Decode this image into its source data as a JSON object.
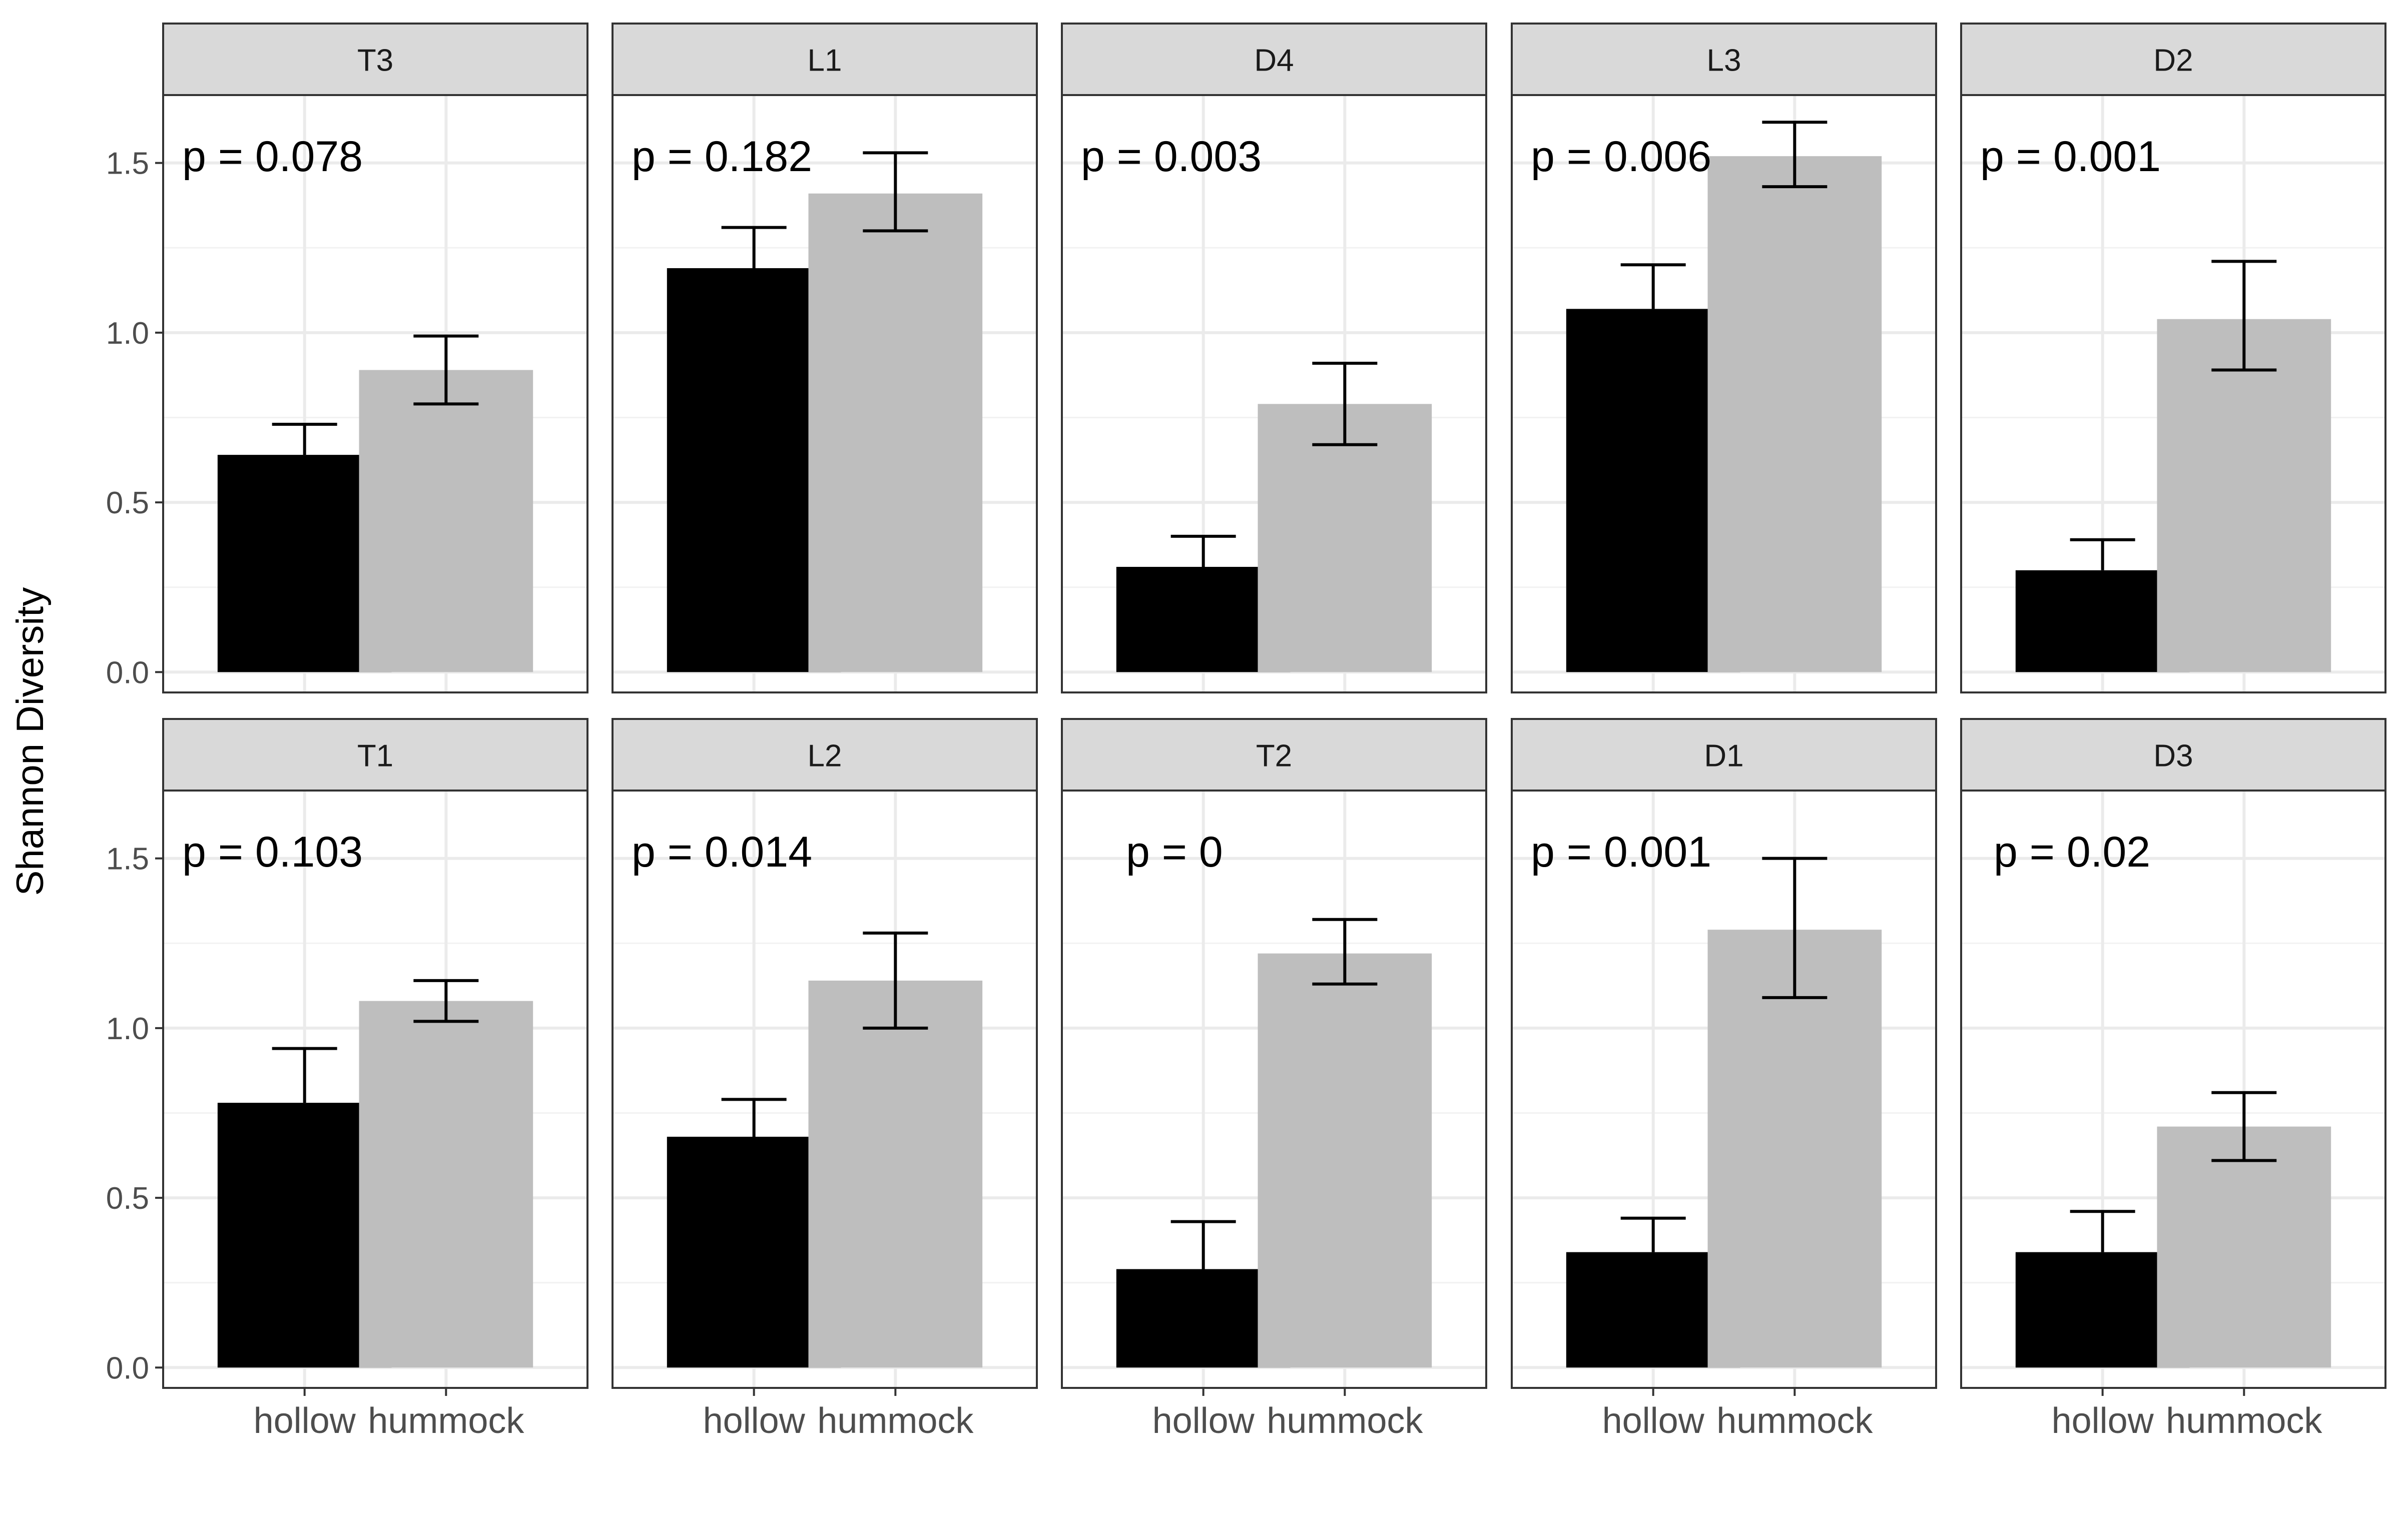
{
  "chart_data": {
    "type": "bar",
    "ylabel": "Shannon Diversity",
    "xlabel": "",
    "categories": [
      "hollow",
      "hummock"
    ],
    "ylim": [
      -0.06,
      1.7
    ],
    "yticks": [
      0.0,
      0.5,
      1.0,
      1.5
    ],
    "ytick_labels": [
      "0.0",
      "0.5",
      "1.0",
      "1.5"
    ],
    "colors": {
      "hollow": "#000000",
      "hummock": "#bebebe",
      "strip": "#d9d9d9",
      "grid": "#ebebeb"
    },
    "error_bars": true,
    "grid": true,
    "layout": {
      "rows": 2,
      "cols": 5
    },
    "panels": [
      {
        "label": "T3",
        "p_text": "p = 0.078",
        "values": [
          0.64,
          0.89
        ],
        "err_low": [
          0.64,
          0.79
        ],
        "err_high": [
          0.73,
          0.99
        ]
      },
      {
        "label": "L1",
        "p_text": "p = 0.182",
        "values": [
          1.19,
          1.41
        ],
        "err_low": [
          1.19,
          1.3
        ],
        "err_high": [
          1.31,
          1.53
        ]
      },
      {
        "label": "D4",
        "p_text": "p = 0.003",
        "values": [
          0.31,
          0.79
        ],
        "err_low": [
          0.31,
          0.67
        ],
        "err_high": [
          0.4,
          0.91
        ]
      },
      {
        "label": "L3",
        "p_text": "p = 0.006",
        "values": [
          1.07,
          1.52
        ],
        "err_low": [
          1.07,
          1.43
        ],
        "err_high": [
          1.2,
          1.62
        ]
      },
      {
        "label": "D2",
        "p_text": "p = 0.001",
        "values": [
          0.3,
          1.04
        ],
        "err_low": [
          0.3,
          0.89
        ],
        "err_high": [
          0.39,
          1.21
        ]
      },
      {
        "label": "T1",
        "p_text": "p = 0.103",
        "values": [
          0.78,
          1.08
        ],
        "err_low": [
          0.78,
          1.02
        ],
        "err_high": [
          0.94,
          1.14
        ]
      },
      {
        "label": "L2",
        "p_text": "p = 0.014",
        "values": [
          0.68,
          1.14
        ],
        "err_low": [
          0.68,
          1.0
        ],
        "err_high": [
          0.79,
          1.28
        ]
      },
      {
        "label": "T2",
        "p_text": "p = 0",
        "values": [
          0.29,
          1.22
        ],
        "err_low": [
          0.29,
          1.13
        ],
        "err_high": [
          0.43,
          1.32
        ]
      },
      {
        "label": "D1",
        "p_text": "p = 0.001",
        "values": [
          0.34,
          1.29
        ],
        "err_low": [
          0.34,
          1.09
        ],
        "err_high": [
          0.44,
          1.5
        ]
      },
      {
        "label": "D3",
        "p_text": "p = 0.02",
        "values": [
          0.34,
          0.71
        ],
        "err_low": [
          0.34,
          0.61
        ],
        "err_high": [
          0.46,
          0.81
        ]
      }
    ]
  }
}
